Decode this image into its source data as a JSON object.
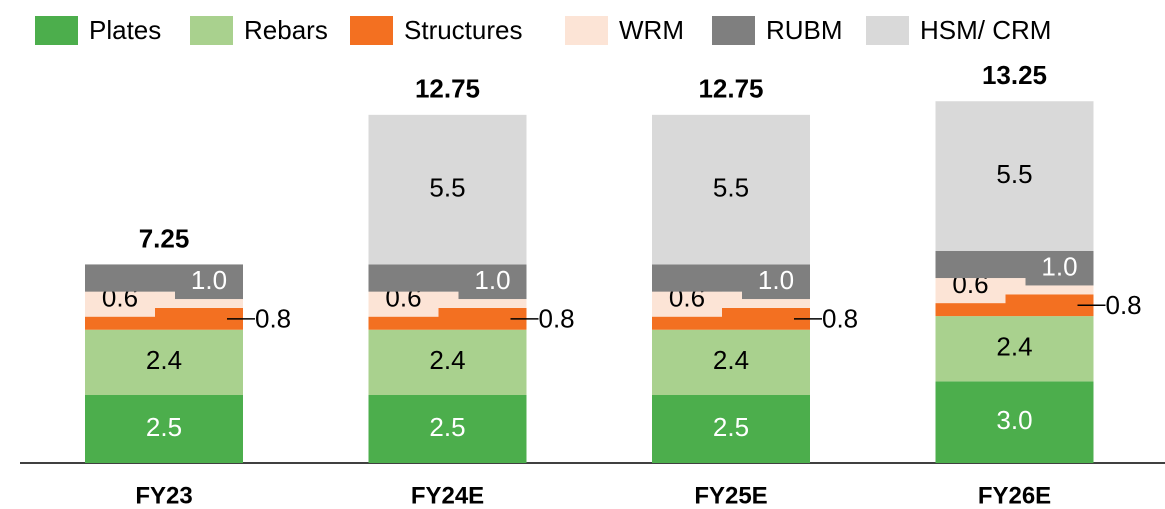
{
  "chart_data": {
    "type": "bar",
    "stacked": true,
    "categories": [
      "FY23",
      "FY24E",
      "FY25E",
      "FY26E"
    ],
    "series": [
      {
        "name": "Plates",
        "color": "#4cae4c",
        "values": [
          2.5,
          2.5,
          2.5,
          3.0
        ],
        "value_labels": [
          "2.5",
          "2.5",
          "2.5",
          "3.0"
        ]
      },
      {
        "name": "Rebars",
        "color": "#a9d18e",
        "values": [
          2.4,
          2.4,
          2.4,
          2.4
        ],
        "value_labels": [
          "2.4",
          "2.4",
          "2.4",
          "2.4"
        ]
      },
      {
        "name": "Structures",
        "color": "#f37021",
        "values": [
          0.8,
          0.8,
          0.8,
          0.8
        ],
        "value_labels": [
          "0.8",
          "0.8",
          "0.8",
          "0.8"
        ]
      },
      {
        "name": "WRM",
        "color": "#fce4d6",
        "values": [
          0.6,
          0.6,
          0.6,
          0.6
        ],
        "value_labels": [
          "0.6",
          "0.6",
          "0.6",
          "0.6"
        ]
      },
      {
        "name": "RUBM",
        "color": "#7f7f7f",
        "values": [
          1.0,
          1.0,
          1.0,
          1.0
        ],
        "value_labels": [
          "1.0",
          "1.0",
          "1.0",
          "1.0"
        ]
      },
      {
        "name": "HSM/ CRM",
        "color": "#d9d9d9",
        "values": [
          null,
          5.5,
          5.5,
          5.5
        ],
        "value_labels": [
          null,
          "5.5",
          "5.5",
          "5.5"
        ]
      }
    ],
    "totals": [
      7.25,
      12.75,
      12.75,
      13.25
    ],
    "legend": "top"
  }
}
